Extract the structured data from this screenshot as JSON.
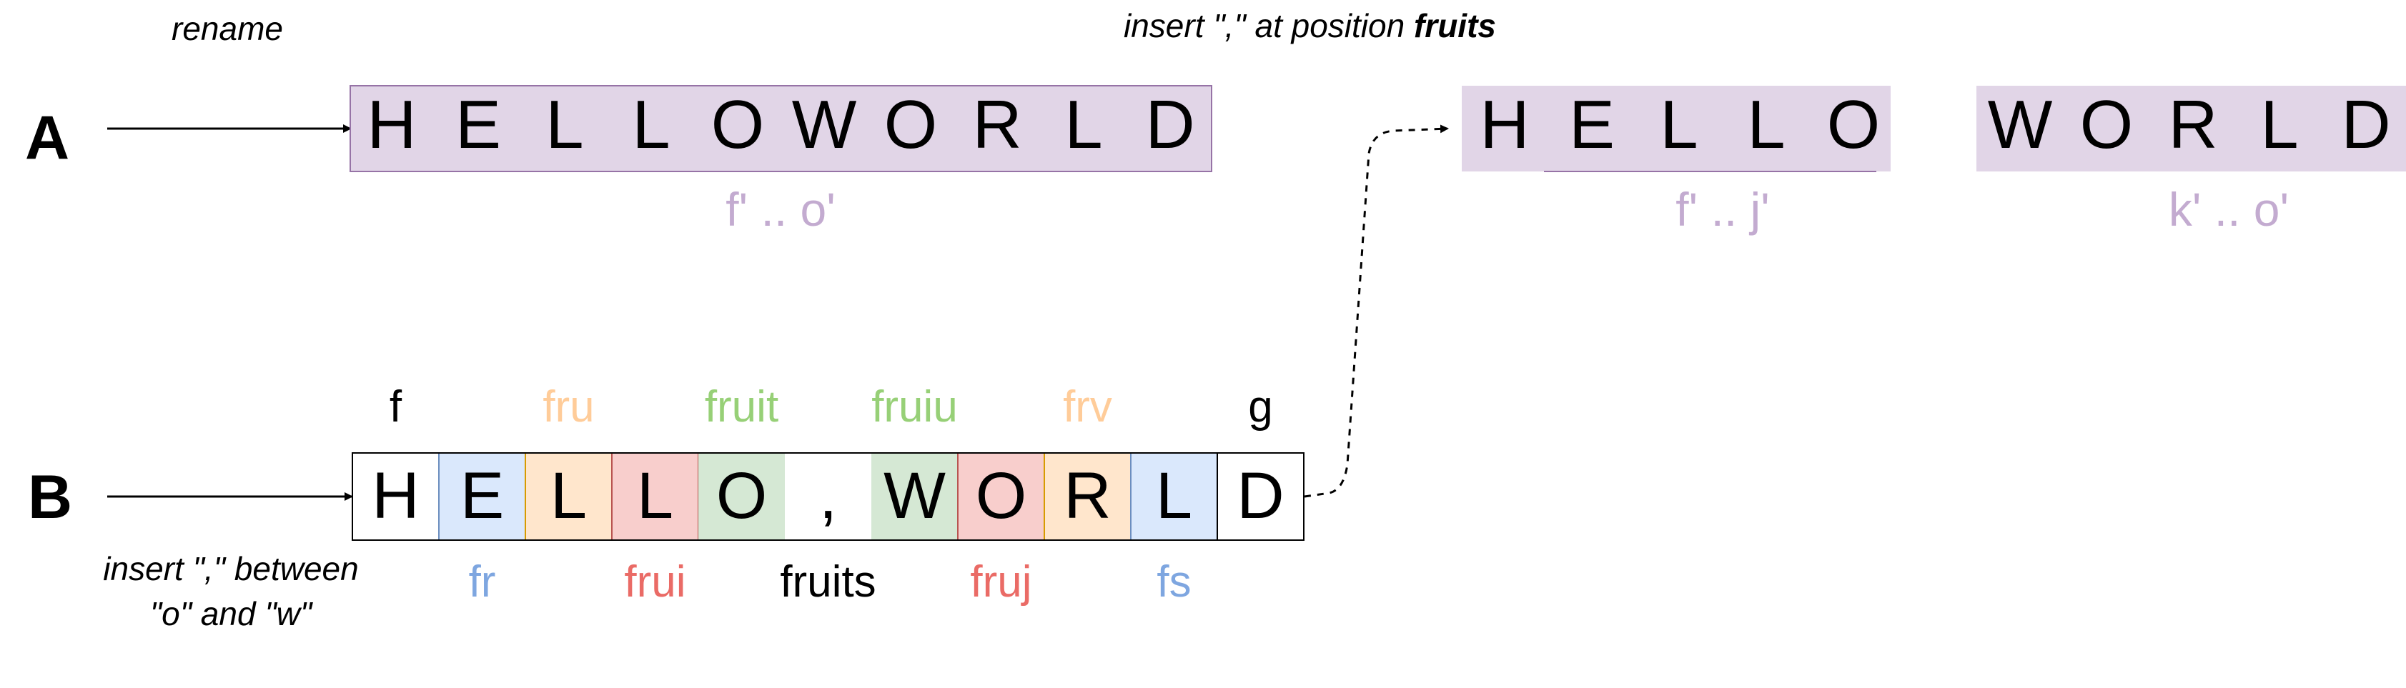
{
  "row_a": {
    "label": "A",
    "arrow_caption": "rename",
    "letters": [
      "H",
      "E",
      "L",
      "L",
      "O",
      "W",
      "O",
      "R",
      "L",
      "D"
    ],
    "range_label": "f' .. o'"
  },
  "insert_caption": {
    "prefix": "insert \",\" at position ",
    "emph": "fruits"
  },
  "split": {
    "left": {
      "letters": [
        "H",
        "E",
        "L",
        "L",
        "O"
      ],
      "range_label": "f' .. j'"
    },
    "right": {
      "letters": [
        "W",
        "O",
        "R",
        "L",
        "D"
      ],
      "range_label": "k' .. o'"
    }
  },
  "row_b": {
    "label": "B",
    "arrow_caption_line1": "insert \",\" between",
    "arrow_caption_line2": "\"o\" and \"w\"",
    "cells": [
      {
        "letter": "H",
        "label": "f",
        "label_side": "top",
        "fill": "#ffffff",
        "stroke": "#000000",
        "label_color": "#000000"
      },
      {
        "letter": "E",
        "label": "fr",
        "label_side": "bottom",
        "fill": "#dae8fc",
        "stroke": "#6c8ebf",
        "label_color": "#7ea6e0"
      },
      {
        "letter": "L",
        "label": "fru",
        "label_side": "top",
        "fill": "#ffe6cc",
        "stroke": "#d79b00",
        "label_color": "#ffcc99"
      },
      {
        "letter": "L",
        "label": "frui",
        "label_side": "bottom",
        "fill": "#f8cecc",
        "stroke": "#b85450",
        "label_color": "#ea6b66"
      },
      {
        "letter": "O",
        "label": "fruit",
        "label_side": "top",
        "fill": "#d5e8d4",
        "stroke": "none",
        "label_color": "#97d077"
      },
      {
        "letter": ",",
        "label": "fruits",
        "label_side": "bottom",
        "fill": "#ffffff",
        "stroke": "none",
        "label_color": "#000000"
      },
      {
        "letter": "W",
        "label": "fruiu",
        "label_side": "top",
        "fill": "#d5e8d4",
        "stroke": "none",
        "label_color": "#97d077"
      },
      {
        "letter": "O",
        "label": "fruj",
        "label_side": "bottom",
        "fill": "#f8cecc",
        "stroke": "#b85450",
        "label_color": "#ea6b66"
      },
      {
        "letter": "R",
        "label": "frv",
        "label_side": "top",
        "fill": "#ffe6cc",
        "stroke": "#d79b00",
        "label_color": "#ffcc99"
      },
      {
        "letter": "L",
        "label": "fs",
        "label_side": "bottom",
        "fill": "#dae8fc",
        "stroke": "#6c8ebf",
        "label_color": "#7ea6e0"
      },
      {
        "letter": "D",
        "label": "g",
        "label_side": "top",
        "fill": "#ffffff",
        "stroke": "#000000",
        "label_color": "#000000"
      }
    ]
  },
  "colors": {
    "block_fill": "#e1d5e7",
    "block_stroke": "#9673a6",
    "range_label": "#c3abd0"
  }
}
